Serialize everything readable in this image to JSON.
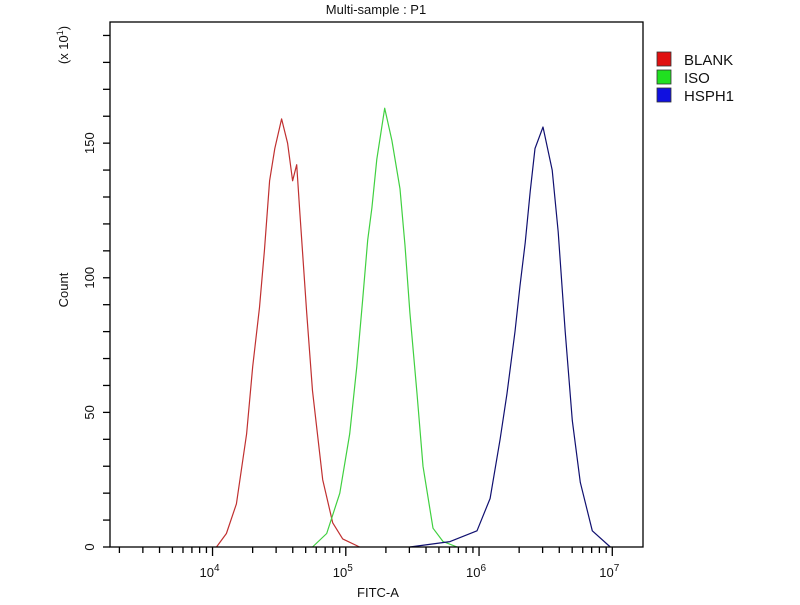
{
  "chart_data": {
    "type": "line",
    "title": "Multi-sample : P1",
    "xlabel": "FITC-A",
    "ylabel": "Count",
    "y_multiplier_label": "(x 10^1)",
    "x_scale": "log",
    "xlim": [
      1700,
      17000000
    ],
    "ylim": [
      0,
      195
    ],
    "x_tick_labels": [
      {
        "value": 10000,
        "base": "10",
        "exp": "4"
      },
      {
        "value": 100000,
        "base": "10",
        "exp": "5"
      },
      {
        "value": 1000000,
        "base": "10",
        "exp": "6"
      },
      {
        "value": 10000000,
        "base": "10",
        "exp": "7"
      }
    ],
    "y_tick_labels": [
      "0",
      "50",
      "100",
      "150"
    ],
    "y_tick_values": [
      0,
      50,
      100,
      150
    ],
    "grid": false,
    "legend_position": "right",
    "series": [
      {
        "name": "BLANK",
        "color": "#c03030",
        "legend_color": "#e01010",
        "points": [
          [
            10700,
            0
          ],
          [
            12700,
            5
          ],
          [
            15100,
            16
          ],
          [
            18000,
            42
          ],
          [
            20000,
            67
          ],
          [
            22500,
            89
          ],
          [
            24500,
            110
          ],
          [
            26800,
            136
          ],
          [
            29300,
            148
          ],
          [
            33000,
            159
          ],
          [
            36600,
            150
          ],
          [
            39900,
            136
          ],
          [
            42800,
            142
          ],
          [
            45100,
            125
          ],
          [
            50900,
            87
          ],
          [
            56300,
            58
          ],
          [
            67100,
            25
          ],
          [
            79700,
            9
          ],
          [
            94800,
            3
          ],
          [
            127000,
            0
          ]
        ]
      },
      {
        "name": "ISO",
        "color": "#40d040",
        "legend_color": "#20e020",
        "points": [
          [
            56300,
            0
          ],
          [
            71900,
            5
          ],
          [
            90200,
            20
          ],
          [
            107000,
            42
          ],
          [
            121000,
            67
          ],
          [
            134000,
            92
          ],
          [
            146000,
            114
          ],
          [
            157000,
            126
          ],
          [
            171000,
            144
          ],
          [
            196000,
            163
          ],
          [
            222000,
            151
          ],
          [
            255000,
            133
          ],
          [
            278000,
            112
          ],
          [
            303000,
            87
          ],
          [
            342000,
            57
          ],
          [
            380000,
            30
          ],
          [
            451000,
            7
          ],
          [
            537000,
            2
          ],
          [
            684000,
            0
          ]
        ]
      },
      {
        "name": "HSPH1",
        "color": "#101070",
        "legend_color": "#1010e0",
        "points": [
          [
            303000,
            0
          ],
          [
            605000,
            2
          ],
          [
            966000,
            6
          ],
          [
            1210000,
            18
          ],
          [
            1440000,
            40
          ],
          [
            1620000,
            57
          ],
          [
            1860000,
            80
          ],
          [
            2030000,
            97
          ],
          [
            2220000,
            113
          ],
          [
            2420000,
            132
          ],
          [
            2630000,
            148
          ],
          [
            3020000,
            156
          ],
          [
            3540000,
            140
          ],
          [
            3930000,
            117
          ],
          [
            4430000,
            80
          ],
          [
            5010000,
            47
          ],
          [
            5750000,
            24
          ],
          [
            7080000,
            6
          ],
          [
            9660000,
            0
          ]
        ]
      }
    ]
  }
}
